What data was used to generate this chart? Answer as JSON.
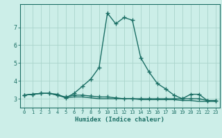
{
  "xlabel": "Humidex (Indice chaleur)",
  "background_color": "#cceee8",
  "line_color": "#1a6e64",
  "grid_color": "#aad4cc",
  "x_values": [
    0,
    1,
    2,
    3,
    4,
    5,
    6,
    7,
    8,
    9,
    10,
    11,
    12,
    13,
    14,
    15,
    16,
    17,
    18,
    19,
    20,
    21,
    22,
    23
  ],
  "y_main": [
    3.2,
    3.25,
    3.3,
    3.3,
    3.25,
    3.05,
    3.3,
    3.7,
    4.1,
    4.75,
    7.8,
    7.2,
    7.55,
    7.4,
    5.3,
    4.5,
    3.85,
    3.55,
    3.2,
    3.0,
    3.25,
    3.25,
    2.9,
    2.9
  ],
  "y_mid": [
    3.2,
    3.25,
    3.3,
    3.3,
    3.2,
    3.1,
    3.2,
    3.2,
    3.15,
    3.1,
    3.1,
    3.05,
    3.0,
    3.0,
    3.0,
    3.0,
    3.0,
    3.0,
    3.0,
    3.0,
    3.0,
    3.0,
    2.9,
    2.9
  ],
  "y_low": [
    3.2,
    3.25,
    3.3,
    3.3,
    3.2,
    3.05,
    3.1,
    3.1,
    3.05,
    3.0,
    3.0,
    3.0,
    3.0,
    3.0,
    2.95,
    2.95,
    2.95,
    2.95,
    2.95,
    2.9,
    2.9,
    2.85,
    2.85,
    2.85
  ],
  "xlim": [
    -0.5,
    23.5
  ],
  "ylim": [
    2.5,
    8.3
  ],
  "yticks": [
    3,
    4,
    5,
    6,
    7
  ],
  "xtick_labels": [
    "0",
    "1",
    "2",
    "3",
    "4",
    "5",
    "6",
    "7",
    "8",
    "9",
    "10",
    "11",
    "12",
    "13",
    "14",
    "15",
    "16",
    "17",
    "18",
    "19",
    "20",
    "21",
    "22",
    "23"
  ],
  "marker": "+",
  "markersize": 4,
  "linewidth": 1.0
}
